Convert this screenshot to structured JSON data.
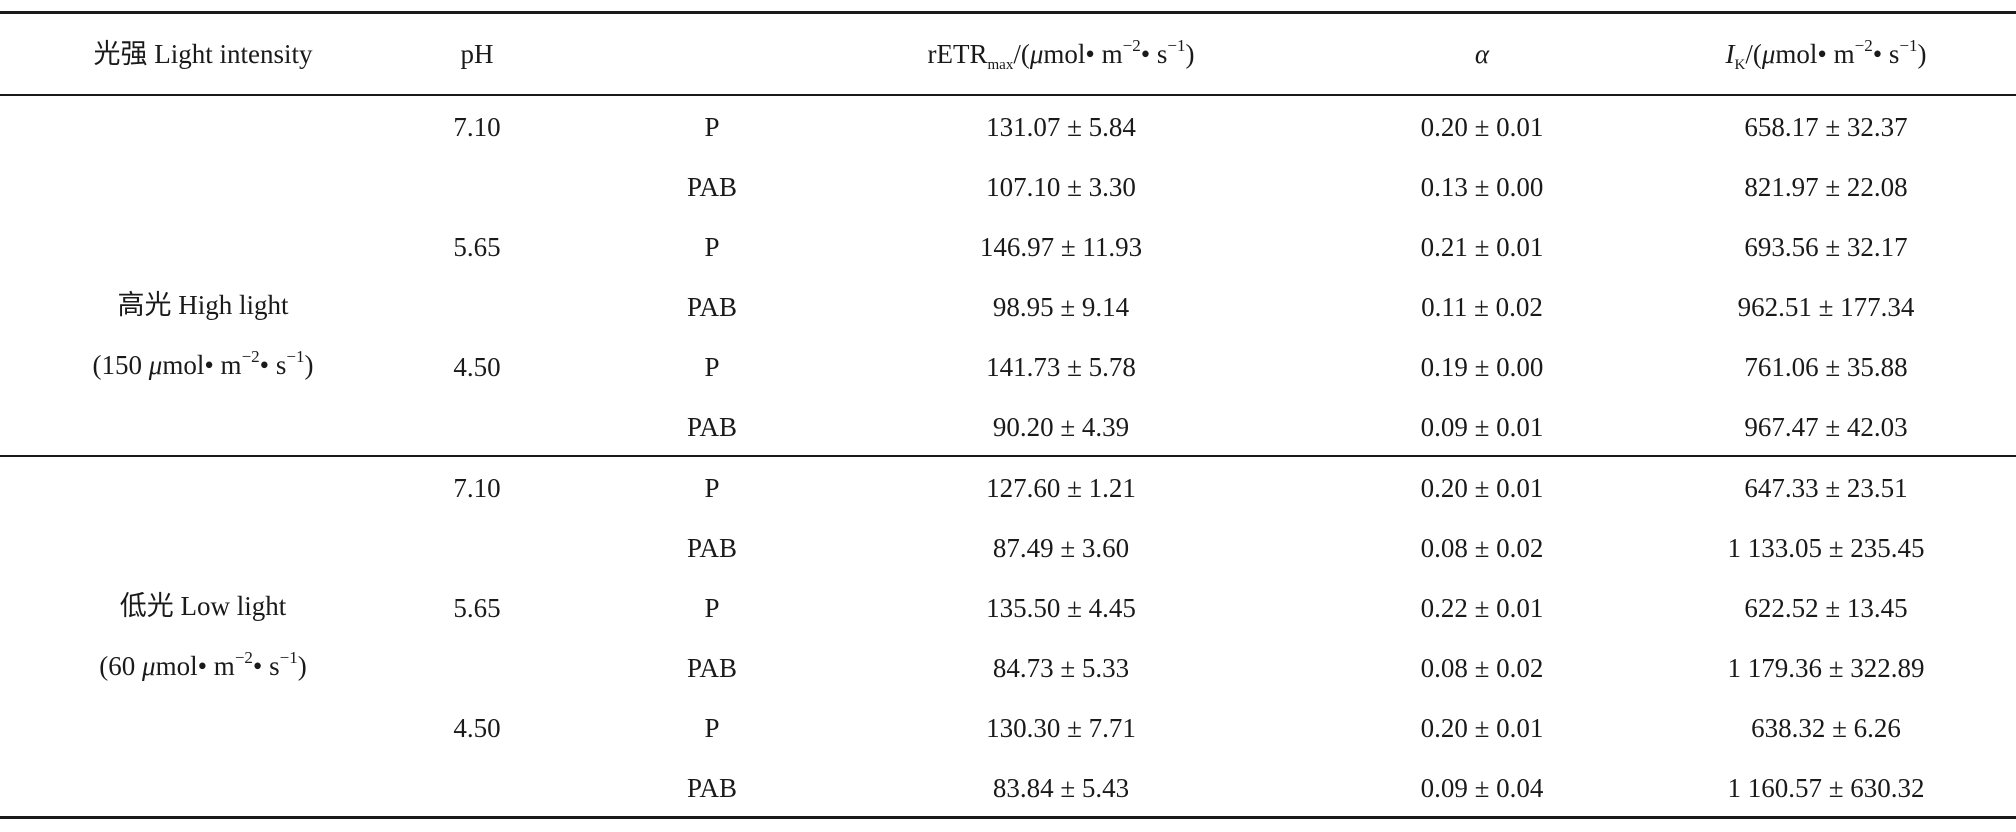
{
  "table": {
    "headers": {
      "light_intensity": "光强 Light intensity",
      "ph": "pH",
      "treatment": "",
      "retr_prefix": "rETR",
      "retr_sub": "max",
      "retr_unit_a": "/(",
      "retr_mu": "μ",
      "retr_unit_b": "mol• m",
      "retr_exp1": "−2",
      "retr_unit_c": "• s",
      "retr_exp2": "−1",
      "retr_unit_d": ")",
      "alpha": "α",
      "ik_prefix": "I",
      "ik_sub": "K",
      "ik_unit_a": "/(",
      "ik_mu": "μ",
      "ik_unit_b": "mol• m",
      "ik_exp1": "−2",
      "ik_unit_c": "• s",
      "ik_exp2": "−1",
      "ik_unit_d": ")"
    },
    "groups": [
      {
        "label_line1": "高光 High light",
        "label_line2_a": "(150 ",
        "label_line2_mu": "μ",
        "label_line2_b": "mol• m",
        "label_line2_exp1": "−2",
        "label_line2_c": "• s",
        "label_line2_exp2": "−1",
        "label_line2_d": ")",
        "rows": [
          {
            "ph": "7.10",
            "treatment": "P",
            "retr": "131.07 ± 5.84",
            "alpha": "0.20 ± 0.01",
            "ik": "658.17 ± 32.37"
          },
          {
            "ph": "",
            "treatment": "PAB",
            "retr": "107.10 ± 3.30",
            "alpha": "0.13 ± 0.00",
            "ik": "821.97 ± 22.08"
          },
          {
            "ph": "5.65",
            "treatment": "P",
            "retr": "146.97 ± 11.93",
            "alpha": "0.21 ± 0.01",
            "ik": "693.56 ± 32.17"
          },
          {
            "ph": "",
            "treatment": "PAB",
            "retr": "98.95 ± 9.14",
            "alpha": "0.11 ± 0.02",
            "ik": "962.51 ± 177.34"
          },
          {
            "ph": "4.50",
            "treatment": "P",
            "retr": "141.73 ± 5.78",
            "alpha": "0.19 ± 0.00",
            "ik": "761.06 ± 35.88"
          },
          {
            "ph": "",
            "treatment": "PAB",
            "retr": "90.20 ± 4.39",
            "alpha": "0.09 ± 0.01",
            "ik": "967.47 ± 42.03"
          }
        ]
      },
      {
        "label_line1": "低光 Low light",
        "label_line2_a": "(60 ",
        "label_line2_mu": "μ",
        "label_line2_b": "mol• m",
        "label_line2_exp1": "−2",
        "label_line2_c": "• s",
        "label_line2_exp2": "−1",
        "label_line2_d": ")",
        "rows": [
          {
            "ph": "7.10",
            "treatment": "P",
            "retr": "127.60 ± 1.21",
            "alpha": "0.20 ± 0.01",
            "ik": "647.33 ± 23.51"
          },
          {
            "ph": "",
            "treatment": "PAB",
            "retr": "87.49 ± 3.60",
            "alpha": "0.08 ± 0.02",
            "ik": "1 133.05 ± 235.45"
          },
          {
            "ph": "5.65",
            "treatment": "P",
            "retr": "135.50 ± 4.45",
            "alpha": "0.22 ± 0.01",
            "ik": "622.52 ± 13.45"
          },
          {
            "ph": "",
            "treatment": "PAB",
            "retr": "84.73 ± 5.33",
            "alpha": "0.08 ± 0.02",
            "ik": "1 179.36 ± 322.89"
          },
          {
            "ph": "4.50",
            "treatment": "P",
            "retr": "130.30 ± 7.71",
            "alpha": "0.20 ± 0.01",
            "ik": "638.32 ± 6.26"
          },
          {
            "ph": "",
            "treatment": "PAB",
            "retr": "83.84 ± 5.43",
            "alpha": "0.09 ± 0.04",
            "ik": "1 160.57 ± 630.32"
          }
        ]
      }
    ]
  }
}
